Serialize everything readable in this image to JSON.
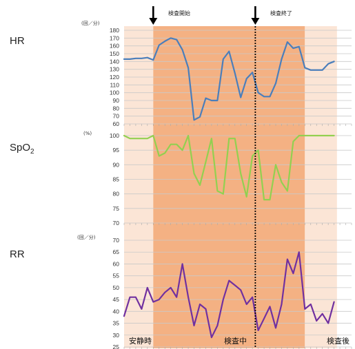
{
  "labels": {
    "hr": "HR",
    "spo2_main": "SpO",
    "spo2_sub": "2",
    "rr": "RR",
    "hr_unit": "(回／分)",
    "spo2_unit": "(%)",
    "rr_unit": "(回／分)",
    "event_start": "検査開始",
    "event_end": "検査終了",
    "phase_rest": "安静時",
    "phase_during": "検査中",
    "phase_after": "検査後"
  },
  "chart_data": [
    {
      "type": "line",
      "name": "HR",
      "ylim": [
        60,
        180
      ],
      "yticks": [
        60,
        70,
        80,
        90,
        100,
        110,
        120,
        130,
        140,
        150,
        160,
        170,
        180
      ],
      "x": [
        0,
        1,
        2,
        3,
        4,
        5,
        6,
        7,
        8,
        9,
        10,
        11,
        12,
        13,
        14,
        15,
        16,
        17,
        18,
        19,
        20,
        21,
        22,
        23,
        24,
        25,
        26,
        27,
        28,
        29,
        30,
        31,
        32,
        33,
        34,
        35,
        36,
        37,
        38,
        39
      ],
      "values": [
        143,
        143,
        144,
        144,
        145,
        142,
        161,
        166,
        170,
        168,
        155,
        132,
        65,
        69,
        93,
        90,
        90,
        143,
        153,
        125,
        94,
        118,
        126,
        100,
        95,
        95,
        112,
        143,
        165,
        157,
        159,
        132,
        129,
        129,
        129,
        137,
        140,
        null,
        null,
        null
      ],
      "color": "#4a7ebb"
    },
    {
      "type": "line",
      "name": "SpO2",
      "ylim": [
        70,
        100
      ],
      "yticks": [
        70,
        75,
        80,
        85,
        90,
        95,
        100
      ],
      "x": [
        0,
        1,
        2,
        3,
        4,
        5,
        6,
        7,
        8,
        9,
        10,
        11,
        12,
        13,
        14,
        15,
        16,
        17,
        18,
        19,
        20,
        21,
        22,
        23,
        24,
        25,
        26,
        27,
        28,
        29,
        30,
        31,
        32,
        33,
        34,
        35,
        36,
        37,
        38,
        39
      ],
      "values": [
        100,
        99,
        99,
        99,
        99,
        100,
        93,
        94,
        97,
        97,
        95,
        100,
        87,
        83,
        91,
        99,
        81,
        80,
        99,
        99,
        87,
        79,
        93,
        95,
        78,
        78,
        90,
        84,
        81,
        98,
        100,
        100,
        100,
        100,
        100,
        100,
        100,
        null,
        null,
        null
      ],
      "color": "#92d050"
    },
    {
      "type": "line",
      "name": "RR",
      "ylim": [
        25,
        70
      ],
      "yticks": [
        25,
        30,
        35,
        40,
        45,
        50,
        55,
        60,
        65,
        70
      ],
      "x": [
        0,
        1,
        2,
        3,
        4,
        5,
        6,
        7,
        8,
        9,
        10,
        11,
        12,
        13,
        14,
        15,
        16,
        17,
        18,
        19,
        20,
        21,
        22,
        23,
        24,
        25,
        26,
        27,
        28,
        29,
        30,
        31,
        32,
        33,
        34,
        35,
        36,
        37,
        38,
        39
      ],
      "values": [
        38,
        46,
        46,
        41,
        50,
        44,
        45,
        48,
        50,
        46,
        60,
        46,
        34,
        43,
        41,
        29,
        34,
        45,
        53,
        51,
        49,
        43,
        46,
        32,
        37,
        42,
        33,
        43,
        62,
        56,
        65,
        41,
        43,
        36,
        39,
        35,
        44,
        null,
        null,
        null
      ],
      "color": "#7030a0"
    }
  ],
  "phases": [
    {
      "name": "rest",
      "start": 0,
      "end": 5,
      "color": "#fbe5d6"
    },
    {
      "name": "during",
      "start": 5,
      "end": 31,
      "color": "#f4b183"
    },
    {
      "name": "after",
      "start": 31,
      "end": 36.5,
      "color": "#fbe5d6"
    }
  ],
  "events": {
    "start": 5,
    "end": 22.5
  }
}
